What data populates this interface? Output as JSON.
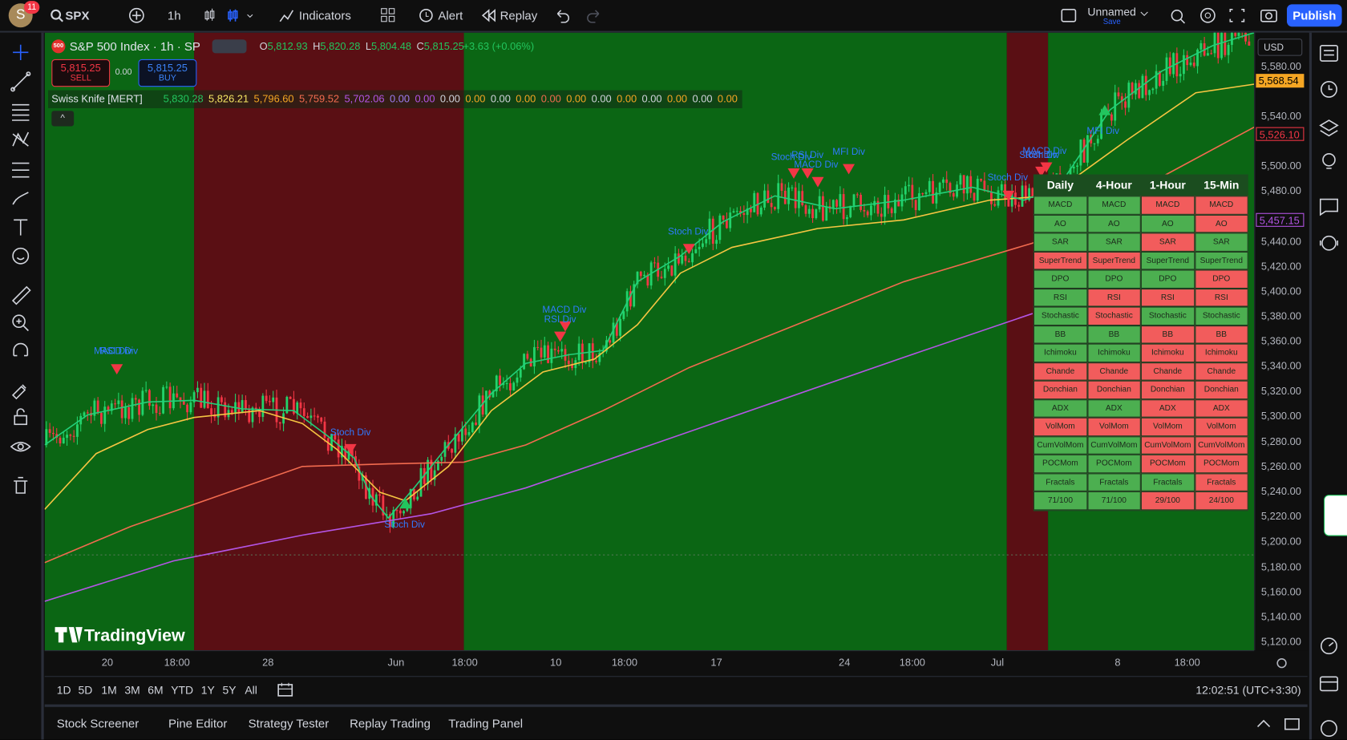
{
  "top_bar": {
    "avatar": "S",
    "badge": "11",
    "symbol": "SPX",
    "interval": "1h",
    "indicators": "Indicators",
    "alert": "Alert",
    "replay": "Replay",
    "layout_name": "Unnamed",
    "layout_status": "Save",
    "publish": "Publish"
  },
  "legend": {
    "exchange_badge": "500",
    "title": "S&P 500 Index · 1h · SP",
    "ohlc": [
      {
        "key": "O",
        "value": "5,812.93"
      },
      {
        "key": "H",
        "value": "5,820.28"
      },
      {
        "key": "L",
        "value": "5,804.48"
      },
      {
        "key": "C",
        "value": "5,815.25"
      }
    ],
    "change": "+3.63 (+0.06%)",
    "sell_price": "5,815.25",
    "sell": "SELL",
    "spread": "0.00",
    "buy_price": "5,815.25",
    "buy": "BUY"
  },
  "indicator": {
    "name": "Swiss Knife [MERT]",
    "values": [
      {
        "text": "5,830.28",
        "color": "#22c55e"
      },
      {
        "text": "5,826.21",
        "color": "#f5e663"
      },
      {
        "text": "5,796.60",
        "color": "#f5a623"
      },
      {
        "text": "5,759.52",
        "color": "#f26b4f"
      },
      {
        "text": "5,702.06",
        "color": "#b455e6"
      },
      {
        "text": "0.00",
        "color": "#9c7cf0"
      },
      {
        "text": "0.00",
        "color": "#b455e6"
      },
      {
        "text": "0.00",
        "color": "#d1d4dc"
      },
      {
        "text": "0.00",
        "color": "#f5a623"
      },
      {
        "text": "0.00",
        "color": "#d1d4dc"
      },
      {
        "text": "0.00",
        "color": "#f5a623"
      },
      {
        "text": "0.00",
        "color": "#f26b4f"
      },
      {
        "text": "0.00",
        "color": "#f5a623"
      },
      {
        "text": "0.00",
        "color": "#d1d4dc"
      },
      {
        "text": "0.00",
        "color": "#f5a623"
      },
      {
        "text": "0.00",
        "color": "#d1d4dc"
      },
      {
        "text": "0.00",
        "color": "#f5a623"
      },
      {
        "text": "0.00",
        "color": "#d1d4dc"
      },
      {
        "text": "0.00",
        "color": "#f5a623"
      }
    ]
  },
  "price_axis": {
    "currency": "USD",
    "labels": [
      "5,580.00",
      "5,540.00",
      "5,500.00",
      "5,480.00",
      "5,440.00",
      "5,420.00",
      "5,400.00",
      "5,380.00",
      "5,360.00",
      "5,340.00",
      "5,320.00",
      "5,300.00",
      "5,280.00",
      "5,260.00",
      "5,240.00",
      "5,220.00",
      "5,200.00",
      "5,180.00",
      "5,160.00",
      "5,140.00",
      "5,120.00"
    ],
    "markers": [
      {
        "text": "5,568.54",
        "color": "#f5a623"
      },
      {
        "text": "5,526.10",
        "color": "#f23645"
      },
      {
        "text": "5,457.15",
        "color": "#b455e6"
      }
    ]
  },
  "time_axis": {
    "labels": [
      "20",
      "18:00",
      "28",
      "Jun",
      "18:00",
      "10",
      "18:00",
      "17",
      "24",
      "18:00",
      "Jul",
      "8",
      "18:00"
    ]
  },
  "annotations": [
    "MACD Div",
    "RSI Div",
    "Stoch Div",
    "Stoch Div",
    "MACD Div",
    "RSI Div",
    "Stoch Div",
    "Stoch Div",
    "RSI Div",
    "MACD Div",
    "MFI Div",
    "Stoch Div",
    "MACD Div",
    "Stoch Div",
    "RSI Div",
    "MFI Div"
  ],
  "signal_table": {
    "header": [
      "Daily",
      "4-Hour",
      "1-Hour",
      "15-Min"
    ],
    "rows": [
      {
        "cells": [
          "MACD",
          "MACD",
          "MACD",
          "MACD"
        ],
        "colors": [
          "#4caf50",
          "#4caf50",
          "#f25c5c",
          "#f25c5c"
        ]
      },
      {
        "cells": [
          "AO",
          "AO",
          "AO",
          "AO"
        ],
        "colors": [
          "#4caf50",
          "#4caf50",
          "#4caf50",
          "#f25c5c"
        ]
      },
      {
        "cells": [
          "SAR",
          "SAR",
          "SAR",
          "SAR"
        ],
        "colors": [
          "#4caf50",
          "#4caf50",
          "#f25c5c",
          "#4caf50"
        ]
      },
      {
        "cells": [
          "SuperTrend",
          "SuperTrend",
          "SuperTrend",
          "SuperTrend"
        ],
        "colors": [
          "#f25c5c",
          "#f25c5c",
          "#4caf50",
          "#4caf50"
        ]
      },
      {
        "cells": [
          "DPO",
          "DPO",
          "DPO",
          "DPO"
        ],
        "colors": [
          "#4caf50",
          "#4caf50",
          "#4caf50",
          "#f25c5c"
        ]
      },
      {
        "cells": [
          "RSI",
          "RSI",
          "RSI",
          "RSI"
        ],
        "colors": [
          "#4caf50",
          "#f25c5c",
          "#f25c5c",
          "#f25c5c"
        ]
      },
      {
        "cells": [
          "Stochastic",
          "Stochastic",
          "Stochastic",
          "Stochastic"
        ],
        "colors": [
          "#4caf50",
          "#f25c5c",
          "#4caf50",
          "#4caf50"
        ]
      },
      {
        "cells": [
          "BB",
          "BB",
          "BB",
          "BB"
        ],
        "colors": [
          "#4caf50",
          "#4caf50",
          "#f25c5c",
          "#f25c5c"
        ]
      },
      {
        "cells": [
          "Ichimoku",
          "Ichimoku",
          "Ichimoku",
          "Ichimoku"
        ],
        "colors": [
          "#4caf50",
          "#4caf50",
          "#f25c5c",
          "#f25c5c"
        ]
      },
      {
        "cells": [
          "Chande",
          "Chande",
          "Chande",
          "Chande"
        ],
        "colors": [
          "#f25c5c",
          "#f25c5c",
          "#f25c5c",
          "#f25c5c"
        ]
      },
      {
        "cells": [
          "Donchian",
          "Donchian",
          "Donchian",
          "Donchian"
        ],
        "colors": [
          "#f25c5c",
          "#f25c5c",
          "#f25c5c",
          "#f25c5c"
        ]
      },
      {
        "cells": [
          "ADX",
          "ADX",
          "ADX",
          "ADX"
        ],
        "colors": [
          "#4caf50",
          "#4caf50",
          "#f25c5c",
          "#f25c5c"
        ]
      },
      {
        "cells": [
          "VolMom",
          "VolMom",
          "VolMom",
          "VolMom"
        ],
        "colors": [
          "#f25c5c",
          "#f25c5c",
          "#f25c5c",
          "#f25c5c"
        ]
      },
      {
        "cells": [
          "CumVolMom",
          "CumVolMom",
          "CumVolMom",
          "CumVolMom"
        ],
        "colors": [
          "#4caf50",
          "#4caf50",
          "#f25c5c",
          "#f25c5c"
        ]
      },
      {
        "cells": [
          "POCMom",
          "POCMom",
          "POCMom",
          "POCMom"
        ],
        "colors": [
          "#4caf50",
          "#4caf50",
          "#f25c5c",
          "#f25c5c"
        ]
      },
      {
        "cells": [
          "Fractals",
          "Fractals",
          "Fractals",
          "Fractals"
        ],
        "colors": [
          "#4caf50",
          "#4caf50",
          "#4caf50",
          "#f25c5c"
        ]
      },
      {
        "cells": [
          "71/100",
          "71/100",
          "29/100",
          "24/100"
        ],
        "colors": [
          "#4caf50",
          "#4caf50",
          "#f25c5c",
          "#f25c5c"
        ]
      }
    ]
  },
  "watermark": "TradingView",
  "range_bar": {
    "buttons": [
      "1D",
      "5D",
      "1M",
      "3M",
      "6M",
      "YTD",
      "1Y",
      "5Y",
      "All"
    ],
    "clock": "12:02:51 (UTC+3:30)"
  },
  "bottom_tabs": [
    "Stock Screener",
    "Pine Editor",
    "Strategy Tester",
    "Replay Trading",
    "Trading Panel"
  ]
}
